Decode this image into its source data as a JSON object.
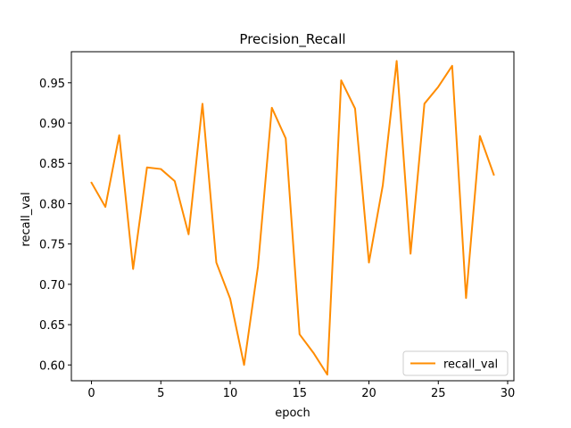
{
  "chart_data": {
    "type": "line",
    "title": "Precision_Recall",
    "xlabel": "epoch",
    "ylabel": "recall_val",
    "xlim": [
      -1.45,
      30.45
    ],
    "ylim": [
      0.5804,
      0.9885
    ],
    "xticks": [
      0,
      5,
      10,
      15,
      20,
      25,
      30
    ],
    "yticks": [
      0.6,
      0.65,
      0.7,
      0.75,
      0.8,
      0.85,
      0.9,
      0.95
    ],
    "xtick_labels": [
      "0",
      "5",
      "10",
      "15",
      "20",
      "25",
      "30"
    ],
    "ytick_labels": [
      "0.60",
      "0.65",
      "0.70",
      "0.75",
      "0.80",
      "0.85",
      "0.90",
      "0.95"
    ],
    "legend_position": "lower right",
    "series": [
      {
        "name": "recall_val",
        "color": "#ff8c00",
        "x": [
          0,
          1,
          2,
          3,
          4,
          5,
          6,
          7,
          8,
          9,
          10,
          11,
          12,
          13,
          14,
          15,
          16,
          17,
          18,
          19,
          20,
          21,
          22,
          23,
          24,
          25,
          26,
          27,
          28,
          29
        ],
        "y": [
          0.826,
          0.796,
          0.885,
          0.719,
          0.845,
          0.843,
          0.828,
          0.762,
          0.924,
          0.727,
          0.682,
          0.6,
          0.722,
          0.919,
          0.881,
          0.638,
          0.615,
          0.588,
          0.953,
          0.918,
          0.727,
          0.823,
          0.977,
          0.738,
          0.924,
          0.945,
          0.971,
          0.683,
          0.884,
          0.836
        ]
      }
    ]
  }
}
